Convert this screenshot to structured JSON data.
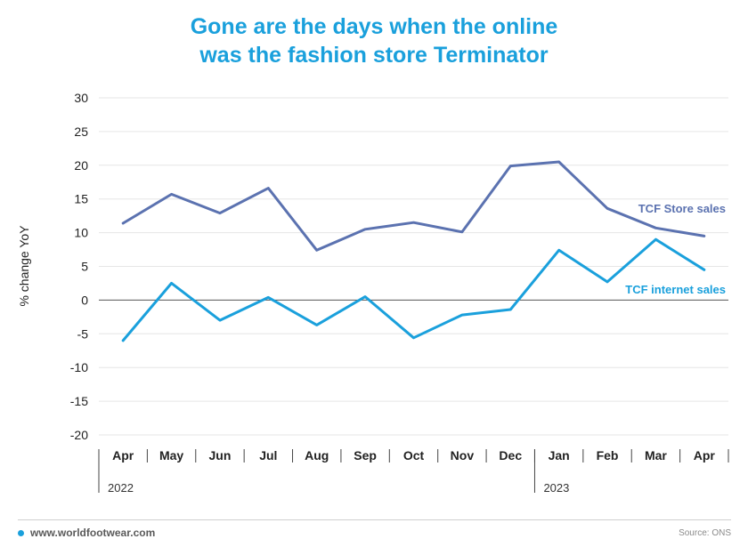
{
  "title_lines": [
    "Gone are the days when the online",
    "was the fashion store Terminator"
  ],
  "footer": {
    "site": "www.worldfootwear.com",
    "source": "Source: ONS"
  },
  "colors": {
    "title": "#1aa0dc",
    "store": "#5b72b0",
    "internet": "#1aa0dc",
    "grid": "#e6e6e6",
    "zero": "#555555"
  },
  "chart_data": {
    "type": "line",
    "title": "Gone are the days when the online was the fashion store Terminator",
    "xlabel": "",
    "ylabel": "% change YoY",
    "ylim": [
      -20,
      30
    ],
    "yticks": [
      30,
      25,
      20,
      15,
      10,
      5,
      0,
      -5,
      -10,
      -15,
      -20
    ],
    "categories": [
      "Apr",
      "May",
      "Jun",
      "Jul",
      "Aug",
      "Sep",
      "Oct",
      "Nov",
      "Dec",
      "Jan",
      "Feb",
      "Mar",
      "Apr"
    ],
    "years": [
      {
        "label": "2022",
        "start_index": 0
      },
      {
        "label": "2023",
        "start_index": 9
      }
    ],
    "grid": true,
    "series": [
      {
        "name": "TCF Store sales",
        "color": "#5b72b0",
        "values": [
          11.4,
          15.7,
          12.9,
          16.6,
          7.4,
          10.5,
          11.5,
          10.1,
          19.9,
          20.5,
          13.6,
          10.7,
          9.5
        ]
      },
      {
        "name": "TCF internet sales",
        "color": "#1aa0dc",
        "values": [
          -6.0,
          2.5,
          -3.0,
          0.4,
          -3.7,
          0.5,
          -5.6,
          -2.2,
          -1.4,
          7.4,
          2.7,
          9.0,
          4.5
        ]
      }
    ]
  }
}
